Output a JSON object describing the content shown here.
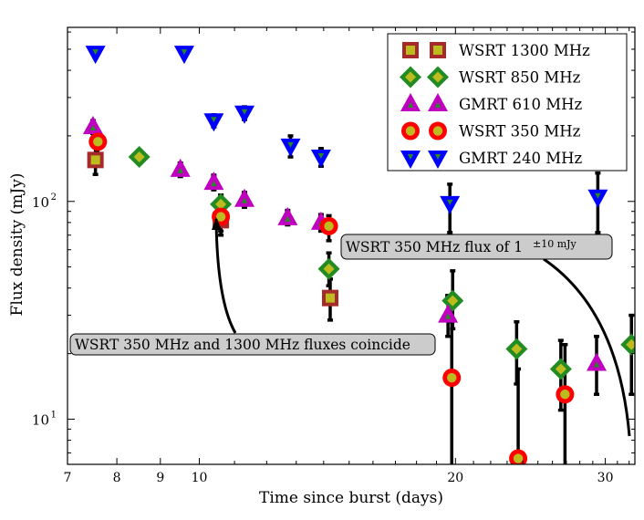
{
  "chart_data": {
    "type": "scatter",
    "title": "",
    "xlabel": "Time since burst (days)",
    "ylabel": "Flux density (mJy)",
    "xscale": "log",
    "yscale": "log",
    "xlim": [
      7,
      32.5
    ],
    "ylim": [
      6.2,
      630
    ],
    "xticks": [
      {
        "v": 7,
        "label": "7"
      },
      {
        "v": 8,
        "label": "8"
      },
      {
        "v": 9,
        "label": "9"
      },
      {
        "v": 10,
        "label": "10"
      },
      {
        "v": 20,
        "label": "20"
      },
      {
        "v": 30,
        "label": "30"
      }
    ],
    "yticks": [
      {
        "v": 10,
        "base": "10",
        "exp": "1"
      },
      {
        "v": 100,
        "base": "10",
        "exp": "2"
      }
    ],
    "legend_position": "top-right",
    "series": [
      {
        "name": "WSRT 1300 MHz",
        "marker": "square",
        "edge_color": "#a52a2a",
        "face_color": "#bcbc1e",
        "points": [
          {
            "x": 7.55,
            "y": 155,
            "lo": 133,
            "hi": 180
          },
          {
            "x": 10.6,
            "y": 82,
            "lo": 70,
            "hi": 94
          },
          {
            "x": 14.25,
            "y": 36,
            "lo": 28.5,
            "hi": 44
          }
        ]
      },
      {
        "name": "WSRT 850 MHz",
        "marker": "diamond",
        "edge_color": "#228b22",
        "face_color": "#bcbc1e",
        "points": [
          {
            "x": 8.5,
            "y": 160,
            "lo": 150,
            "hi": 170
          },
          {
            "x": 10.6,
            "y": 97,
            "lo": 88,
            "hi": 107
          },
          {
            "x": 14.2,
            "y": 49,
            "lo": 41,
            "hi": 58
          },
          {
            "x": 19.85,
            "y": 35,
            "lo": 26,
            "hi": 48
          },
          {
            "x": 23.6,
            "y": 21,
            "lo": 14.5,
            "hi": 28
          },
          {
            "x": 26.6,
            "y": 17,
            "lo": 11,
            "hi": 23
          },
          {
            "x": 32.2,
            "y": 22,
            "lo": 13,
            "hi": 30
          }
        ]
      },
      {
        "name": "GMRT 610 MHz",
        "marker": "triangle-up",
        "edge_color": "#bf00bf",
        "face_color": "#228b22",
        "points": [
          {
            "x": 7.5,
            "y": 220,
            "lo": 205,
            "hi": 235
          },
          {
            "x": 9.5,
            "y": 140,
            "lo": 130,
            "hi": 150
          },
          {
            "x": 10.4,
            "y": 122,
            "lo": 113,
            "hi": 132
          },
          {
            "x": 11.3,
            "y": 102,
            "lo": 94,
            "hi": 110
          },
          {
            "x": 12.7,
            "y": 84,
            "lo": 78,
            "hi": 91
          },
          {
            "x": 13.9,
            "y": 80,
            "lo": 73,
            "hi": 87
          },
          {
            "x": 19.6,
            "y": 30,
            "lo": 24,
            "hi": 37
          },
          {
            "x": 29.3,
            "y": 18,
            "lo": 13,
            "hi": 24
          }
        ]
      },
      {
        "name": "WSRT 350 MHz",
        "marker": "circle",
        "edge_color": "#ff0000",
        "face_color": "#bcbc1e",
        "points": [
          {
            "x": 7.6,
            "y": 188,
            "lo": 166,
            "hi": 210
          },
          {
            "x": 10.6,
            "y": 85,
            "lo": 73,
            "hi": 95
          },
          {
            "x": 14.2,
            "y": 77,
            "lo": 66,
            "hi": 86
          },
          {
            "x": 19.8,
            "y": 15.5,
            "lo": 6.2,
            "hi": 28
          },
          {
            "x": 23.7,
            "y": 6.6,
            "lo": 6.2,
            "hi": 17
          },
          {
            "x": 26.9,
            "y": 13,
            "lo": 6.2,
            "hi": 22
          }
        ]
      },
      {
        "name": "GMRT 240 MHz",
        "marker": "triangle-down",
        "edge_color": "#0000ff",
        "face_color": "#228b22",
        "points": [
          {
            "x": 7.55,
            "y": 480,
            "lo": 460,
            "hi": 500
          },
          {
            "x": 9.6,
            "y": 480,
            "lo": 460,
            "hi": 500
          },
          {
            "x": 10.4,
            "y": 235,
            "lo": 220,
            "hi": 250
          },
          {
            "x": 11.3,
            "y": 255,
            "lo": 238,
            "hi": 272
          },
          {
            "x": 12.8,
            "y": 180,
            "lo": 160,
            "hi": 200
          },
          {
            "x": 13.9,
            "y": 160,
            "lo": 145,
            "hi": 175
          },
          {
            "x": 19.7,
            "y": 98,
            "lo": 72,
            "hi": 120
          },
          {
            "x": 29.4,
            "y": 105,
            "lo": 72,
            "hi": 135
          }
        ]
      }
    ],
    "annotations": [
      {
        "text": "WSRT 350 MHz and 1300 MHz fluxes coincide",
        "target_x": 10.65,
        "target_y": 80
      },
      {
        "text_before": "WSRT 350 MHz flux of 1 ",
        "pm": "±10 mJy",
        "target_x": 32.0,
        "target_y": 7.2
      }
    ]
  }
}
